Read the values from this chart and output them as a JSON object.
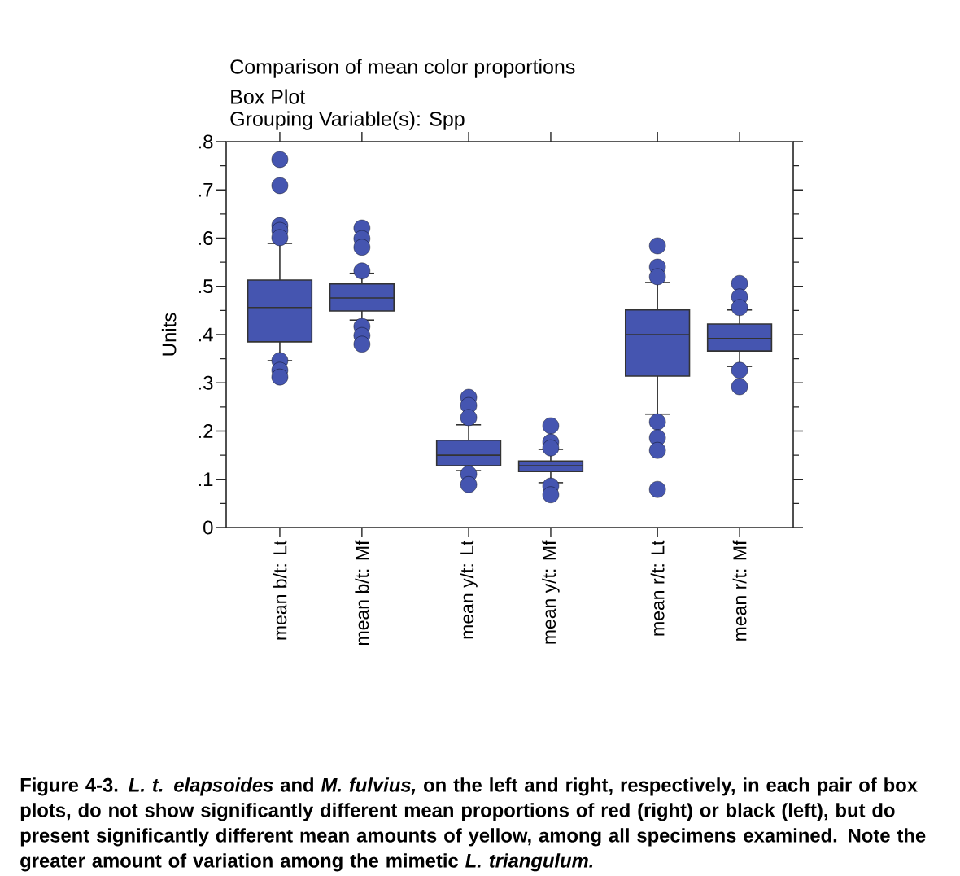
{
  "chart_data": {
    "type": "box",
    "title": "Comparison of mean color proportions",
    "subtitle": "Box Plot",
    "ylabel": "Units",
    "categories": [
      "mean b/t: Lt",
      "mean b/t: Mf",
      "mean y/t: Lt",
      "mean y/t: Mf",
      "mean r/t: Lt",
      "mean r/t: Mf"
    ],
    "series": [
      {
        "color": "#4555b0",
        "marker": "circle",
        "boxes": [
          {
            "low": 0.346,
            "q1": 0.385,
            "median": 0.456,
            "q3": 0.513,
            "high": 0.589,
            "outliers": [
              0.763,
              0.709,
              0.626,
              0.616,
              0.601,
              0.346,
              0.326,
              0.312
            ]
          },
          {
            "low": 0.43,
            "q1": 0.449,
            "median": 0.476,
            "q3": 0.505,
            "high": 0.527,
            "outliers": [
              0.621,
              0.599,
              0.581,
              0.532,
              0.417,
              0.398,
              0.38
            ]
          },
          {
            "low": 0.118,
            "q1": 0.128,
            "median": 0.15,
            "q3": 0.181,
            "high": 0.213,
            "outliers": [
              0.27,
              0.253,
              0.228,
              0.111,
              0.089
            ]
          },
          {
            "low": 0.093,
            "q1": 0.116,
            "median": 0.128,
            "q3": 0.138,
            "high": 0.162,
            "outliers": [
              0.211,
              0.177,
              0.165,
              0.086,
              0.068
            ]
          },
          {
            "low": 0.235,
            "q1": 0.314,
            "median": 0.4,
            "q3": 0.451,
            "high": 0.508,
            "outliers": [
              0.584,
              0.54,
              0.52,
              0.219,
              0.186,
              0.16,
              0.079
            ]
          },
          {
            "low": 0.334,
            "q1": 0.366,
            "median": 0.392,
            "q3": 0.422,
            "high": 0.451,
            "outliers": [
              0.506,
              0.478,
              0.456,
              0.326,
              0.292
            ]
          }
        ]
      }
    ],
    "ylim": [
      0,
      0.8
    ],
    "yticks": [
      0,
      {
        "value": 0.1,
        "label": ".1"
      },
      {
        "value": 0.2,
        "label": ".2"
      },
      {
        "value": 0.3,
        "label": ".3"
      },
      {
        "value": 0.4,
        "label": ".4"
      },
      {
        "value": 0.5,
        "label": ".5"
      },
      {
        "value": 0.6,
        "label": ".6"
      },
      {
        "value": 0.7,
        "label": ".7"
      },
      {
        "value": 0.8,
        "label": ".8"
      }
    ],
    "annotations": [
      "Grouping Variable(s): Spp",
      "Figure 4-3. *L. t. elapsoides* and *M. fulvius,* on the left and right, respectively, in each pair of box plots, do not show significantly different mean proportions of red (right) or black (left), but do present significantly different mean amounts of yellow, among all specimens examined. Note the greater amount of variation among the mimetic *L. triangulum.*"
    ]
  }
}
